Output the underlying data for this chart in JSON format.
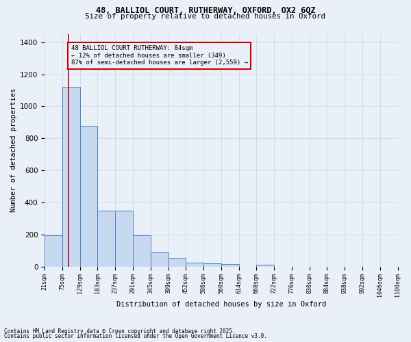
{
  "title_line1": "48, BALLIOL COURT, RUTHERWAY, OXFORD, OX2 6QZ",
  "title_line2": "Size of property relative to detached houses in Oxford",
  "xlabel": "Distribution of detached houses by size in Oxford",
  "ylabel": "Number of detached properties",
  "bin_labels": [
    "21sqm",
    "75sqm",
    "129sqm",
    "183sqm",
    "237sqm",
    "291sqm",
    "345sqm",
    "399sqm",
    "452sqm",
    "506sqm",
    "560sqm",
    "614sqm",
    "668sqm",
    "722sqm",
    "776sqm",
    "830sqm",
    "884sqm",
    "938sqm",
    "992sqm",
    "1046sqm",
    "1100sqm"
  ],
  "bar_heights": [
    195,
    1120,
    880,
    350,
    350,
    195,
    90,
    55,
    25,
    20,
    15,
    0,
    10,
    0,
    0,
    0,
    0,
    0,
    0,
    0
  ],
  "bar_color": "#c6d9f1",
  "bar_edge_color": "#4f81bd",
  "grid_color": "#d0d8e4",
  "bg_color": "#eaf0f8",
  "property_line_idx": 1.35,
  "property_line_color": "#cc0000",
  "annotation_text": "48 BALLIOL COURT RUTHERWAY: 84sqm\n← 12% of detached houses are smaller (349)\n87% of semi-detached houses are larger (2,559) →",
  "annotation_box_color": "#cc0000",
  "ylim": [
    0,
    1450
  ],
  "yticks": [
    0,
    200,
    400,
    600,
    800,
    1000,
    1200,
    1400
  ],
  "footnote_line1": "Contains HM Land Registry data © Crown copyright and database right 2025.",
  "footnote_line2": "Contains public sector information licensed under the Open Government Licence v3.0."
}
